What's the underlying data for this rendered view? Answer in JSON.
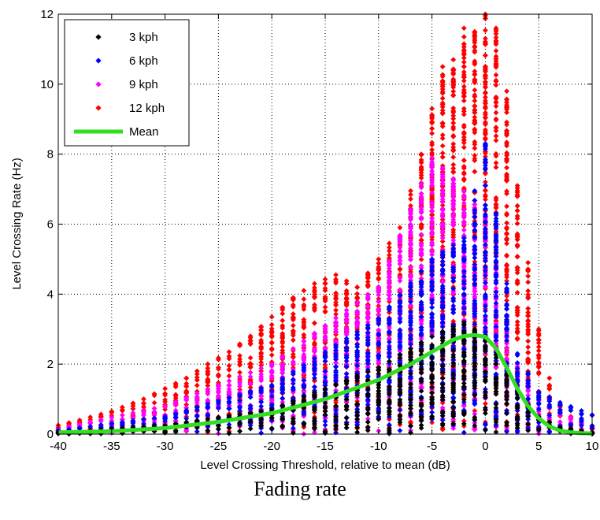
{
  "caption": "Fading rate",
  "chart_data": {
    "type": "scatter",
    "title": "",
    "xlabel": "Level Crossing Threshold, relative to mean (dB)",
    "ylabel": "Level Crossing Rate (Hz)",
    "xlim": [
      -40,
      10
    ],
    "ylim": [
      0,
      12
    ],
    "xticks": [
      -40,
      -35,
      -30,
      -25,
      -20,
      -15,
      -10,
      -5,
      0,
      5,
      10
    ],
    "yticks": [
      0,
      2,
      4,
      6,
      8,
      10,
      12
    ],
    "grid": true,
    "legend_position": "top-left",
    "series": [
      {
        "name": "3 kph",
        "kind": "points",
        "color": "#000000",
        "envelope": {
          "x": [
            -40,
            -30,
            -20,
            -10,
            -5,
            -2,
            0,
            3,
            5,
            7,
            10
          ],
          "y": [
            0.05,
            0.25,
            0.7,
            1.9,
            2.8,
            3.2,
            2.8,
            1.2,
            0.5,
            0.2,
            0.05
          ]
        }
      },
      {
        "name": "6 kph",
        "kind": "points",
        "color": "#0000ff",
        "envelope": {
          "x": [
            -40,
            -30,
            -20,
            -10,
            -5,
            -2,
            0,
            3,
            5,
            7,
            10
          ],
          "y": [
            0.1,
            0.5,
            1.4,
            3.3,
            5.0,
            5.6,
            8.3,
            2.3,
            1.2,
            0.9,
            0.55
          ]
        }
      },
      {
        "name": "9 kph",
        "kind": "points",
        "color": "#ff00ff",
        "envelope": {
          "x": [
            -40,
            -30,
            -20,
            -10,
            -5,
            -3,
            0,
            3,
            5,
            7,
            10
          ],
          "y": [
            0.15,
            0.8,
            2.0,
            4.2,
            7.9,
            7.3,
            6.2,
            2.0,
            1.0,
            0.6,
            0.2
          ]
        }
      },
      {
        "name": "12 kph",
        "kind": "points",
        "color": "#ff0000",
        "envelope": {
          "x": [
            -40,
            -38,
            -35,
            -32,
            -30,
            -28,
            -26,
            -24,
            -22,
            -20,
            -18,
            -16,
            -14,
            -12,
            -10,
            -8,
            -6,
            -5,
            -4,
            -3,
            -2,
            -1,
            0,
            1,
            2,
            3,
            4,
            5,
            6,
            7,
            8,
            9,
            10
          ],
          "y": [
            0.25,
            0.4,
            0.65,
            1.0,
            1.3,
            1.6,
            2.0,
            2.35,
            2.8,
            3.35,
            3.9,
            4.3,
            4.55,
            4.2,
            5.0,
            5.9,
            8.0,
            9.3,
            10.5,
            10.7,
            11.6,
            11.5,
            12.0,
            11.6,
            9.8,
            7.1,
            4.9,
            3.0,
            1.6,
            0.9,
            0.5,
            0.3,
            0.15
          ]
        }
      },
      {
        "name": "Mean",
        "kind": "line",
        "color": "#33dd22",
        "x": [
          -40,
          -35,
          -30,
          -25,
          -20,
          -15,
          -10,
          -7,
          -5,
          -3,
          -2,
          -1,
          0,
          1,
          2,
          3,
          4,
          5,
          6,
          7,
          8,
          9,
          10
        ],
        "y": [
          0.05,
          0.08,
          0.17,
          0.35,
          0.6,
          1.0,
          1.55,
          2.0,
          2.35,
          2.7,
          2.8,
          2.83,
          2.78,
          2.45,
          1.9,
          1.3,
          0.8,
          0.45,
          0.22,
          0.1,
          0.05,
          0.03,
          0.02
        ]
      }
    ]
  }
}
